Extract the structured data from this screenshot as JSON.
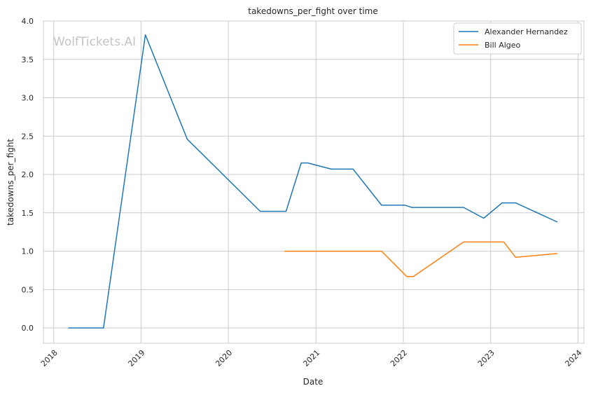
{
  "chart_data": {
    "type": "line",
    "title": "takedowns_per_fight over time",
    "xlabel": "Date",
    "ylabel": "takedowns_per_fight",
    "watermark": "WolfTickets.AI",
    "x_ticks": [
      "2018",
      "2019",
      "2020",
      "2021",
      "2022",
      "2023",
      "2024"
    ],
    "y_ticks": [
      "0.0",
      "0.5",
      "1.0",
      "1.5",
      "2.0",
      "2.5",
      "3.0",
      "3.5",
      "4.0"
    ],
    "xlim": [
      "2017-11-19",
      "2024-01-26"
    ],
    "ylim": [
      -0.2,
      4.0
    ],
    "grid": true,
    "legend_position": "top-right",
    "series": [
      {
        "name": "Alexander Hernandez",
        "color": "#1f77b4",
        "points": [
          {
            "x": "2018-03-03",
            "y": 0.0
          },
          {
            "x": "2018-07-28",
            "y": 0.0
          },
          {
            "x": "2019-01-19",
            "y": 3.82
          },
          {
            "x": "2019-07-13",
            "y": 2.46
          },
          {
            "x": "2020-05-13",
            "y": 1.52
          },
          {
            "x": "2020-08-29",
            "y": 1.52
          },
          {
            "x": "2020-10-31",
            "y": 2.15
          },
          {
            "x": "2020-11-28",
            "y": 2.15
          },
          {
            "x": "2021-03-06",
            "y": 2.07
          },
          {
            "x": "2021-06-05",
            "y": 2.07
          },
          {
            "x": "2021-10-02",
            "y": 1.6
          },
          {
            "x": "2022-01-08",
            "y": 1.6
          },
          {
            "x": "2022-02-05",
            "y": 1.57
          },
          {
            "x": "2022-09-10",
            "y": 1.57
          },
          {
            "x": "2022-12-03",
            "y": 1.43
          },
          {
            "x": "2023-02-18",
            "y": 1.63
          },
          {
            "x": "2023-04-15",
            "y": 1.63
          },
          {
            "x": "2023-10-07",
            "y": 1.38
          }
        ]
      },
      {
        "name": "Bill Algeo",
        "color": "#ff7f0e",
        "points": [
          {
            "x": "2020-08-22",
            "y": 1.0
          },
          {
            "x": "2021-10-02",
            "y": 1.0
          },
          {
            "x": "2022-01-15",
            "y": 0.67
          },
          {
            "x": "2022-02-12",
            "y": 0.67
          },
          {
            "x": "2022-09-10",
            "y": 1.12
          },
          {
            "x": "2023-02-25",
            "y": 1.12
          },
          {
            "x": "2023-04-15",
            "y": 0.92
          },
          {
            "x": "2023-10-07",
            "y": 0.97
          }
        ]
      }
    ]
  }
}
